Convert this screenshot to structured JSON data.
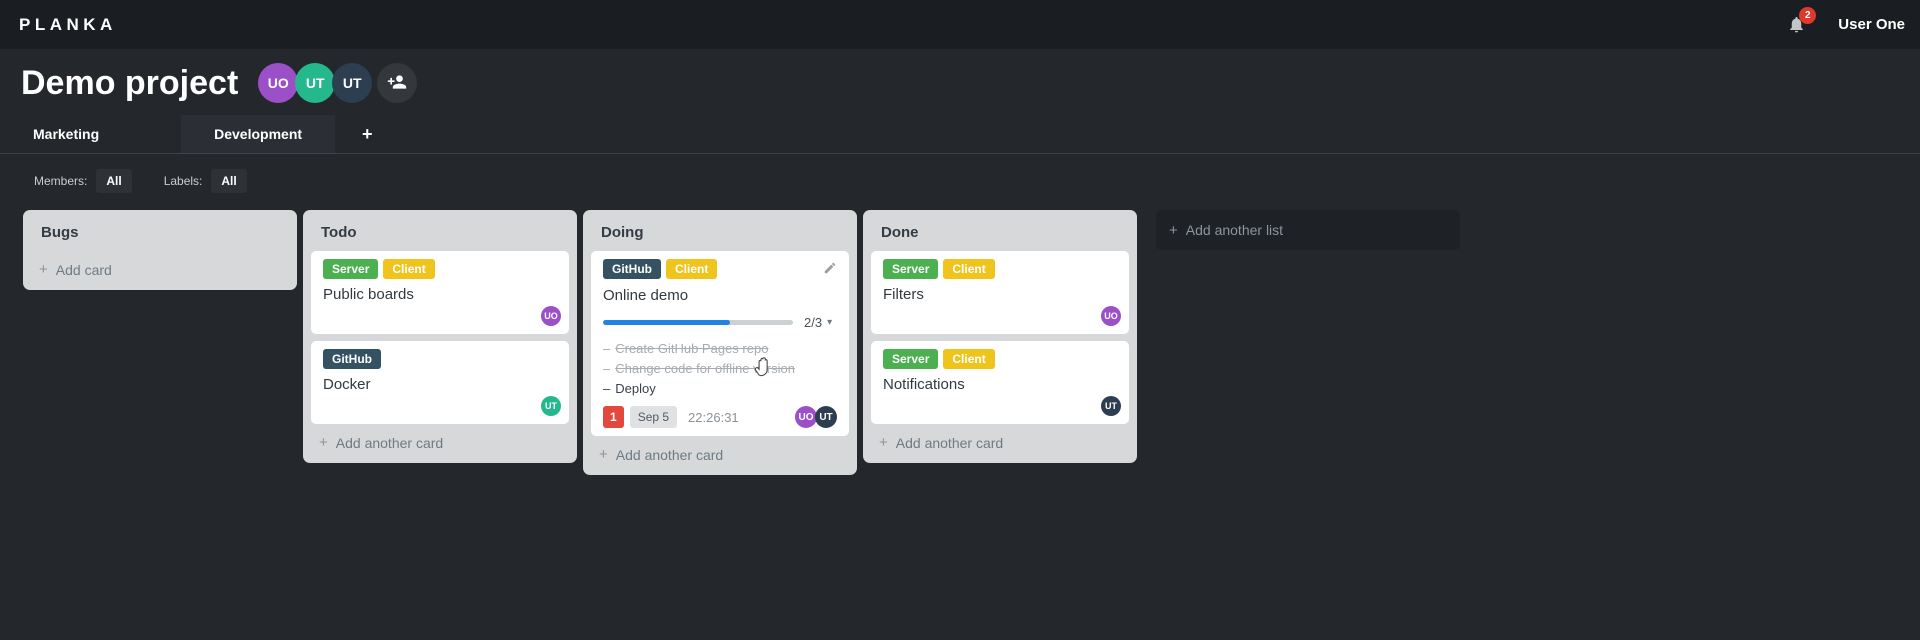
{
  "topbar": {
    "logo": "PLANKA",
    "notifications_count": "2",
    "user_name": "User One"
  },
  "header": {
    "title": "Demo project",
    "members": [
      {
        "initials": "UO",
        "color": "#9c50c8"
      },
      {
        "initials": "UT",
        "color": "#24b88c"
      },
      {
        "initials": "UT",
        "color": "#2d3e50"
      }
    ]
  },
  "tabs": {
    "items": [
      {
        "label": "Marketing",
        "active": false
      },
      {
        "label": "Development",
        "active": true
      }
    ],
    "add_button": "+"
  },
  "filters": {
    "members_label": "Members:",
    "members_value": "All",
    "labels_label": "Labels:",
    "labels_value": "All"
  },
  "board": {
    "add_list_label": "Add another list",
    "lists": [
      {
        "title": "Bugs",
        "add_label": "Add card",
        "cards": []
      },
      {
        "title": "Todo",
        "add_label": "Add another card",
        "cards": [
          {
            "title": "Public boards",
            "labels": [
              {
                "text": "Server",
                "color": "#4caf50"
              },
              {
                "text": "Client",
                "color": "#efc41c"
              }
            ],
            "members": [
              {
                "initials": "UO",
                "color": "#9c50c8"
              }
            ]
          },
          {
            "title": "Docker",
            "labels": [
              {
                "text": "GitHub",
                "color": "#355263"
              }
            ],
            "members": [
              {
                "initials": "UT",
                "color": "#24b88c"
              }
            ]
          }
        ]
      },
      {
        "title": "Doing",
        "add_label": "Add another card",
        "cards": [
          {
            "title": "Online demo",
            "editable": true,
            "labels": [
              {
                "text": "GitHub",
                "color": "#355263"
              },
              {
                "text": "Client",
                "color": "#efc41c"
              }
            ],
            "progress": {
              "percent": 66.7,
              "label": "2/3"
            },
            "tasks": [
              {
                "text": "Create GitHub Pages repo",
                "done": true
              },
              {
                "text": "Change code for offline version",
                "done": true
              },
              {
                "text": "Deploy",
                "done": false
              }
            ],
            "badge_count": "1",
            "due_date": "Sep 5",
            "timer": "22:26:31",
            "members": [
              {
                "initials": "UO",
                "color": "#9c50c8"
              },
              {
                "initials": "UT",
                "color": "#2d3e50"
              }
            ]
          }
        ]
      },
      {
        "title": "Done",
        "add_label": "Add another card",
        "cards": [
          {
            "title": "Filters",
            "labels": [
              {
                "text": "Server",
                "color": "#4caf50"
              },
              {
                "text": "Client",
                "color": "#efc41c"
              }
            ],
            "members": [
              {
                "initials": "UO",
                "color": "#9c50c8"
              }
            ]
          },
          {
            "title": "Notifications",
            "labels": [
              {
                "text": "Server",
                "color": "#4caf50"
              },
              {
                "text": "Client",
                "color": "#efc41c"
              }
            ],
            "members": [
              {
                "initials": "UT",
                "color": "#2d3e50"
              }
            ]
          }
        ]
      }
    ]
  },
  "icons": {
    "plus": "+",
    "chevron_down": "▾",
    "task_dash": "–"
  },
  "colors": {
    "accent_progress": "#2184e0",
    "notification_badge": "#e0392b",
    "due_count_badge": "#e2483d",
    "date_badge_bg": "#dfe1e3"
  }
}
